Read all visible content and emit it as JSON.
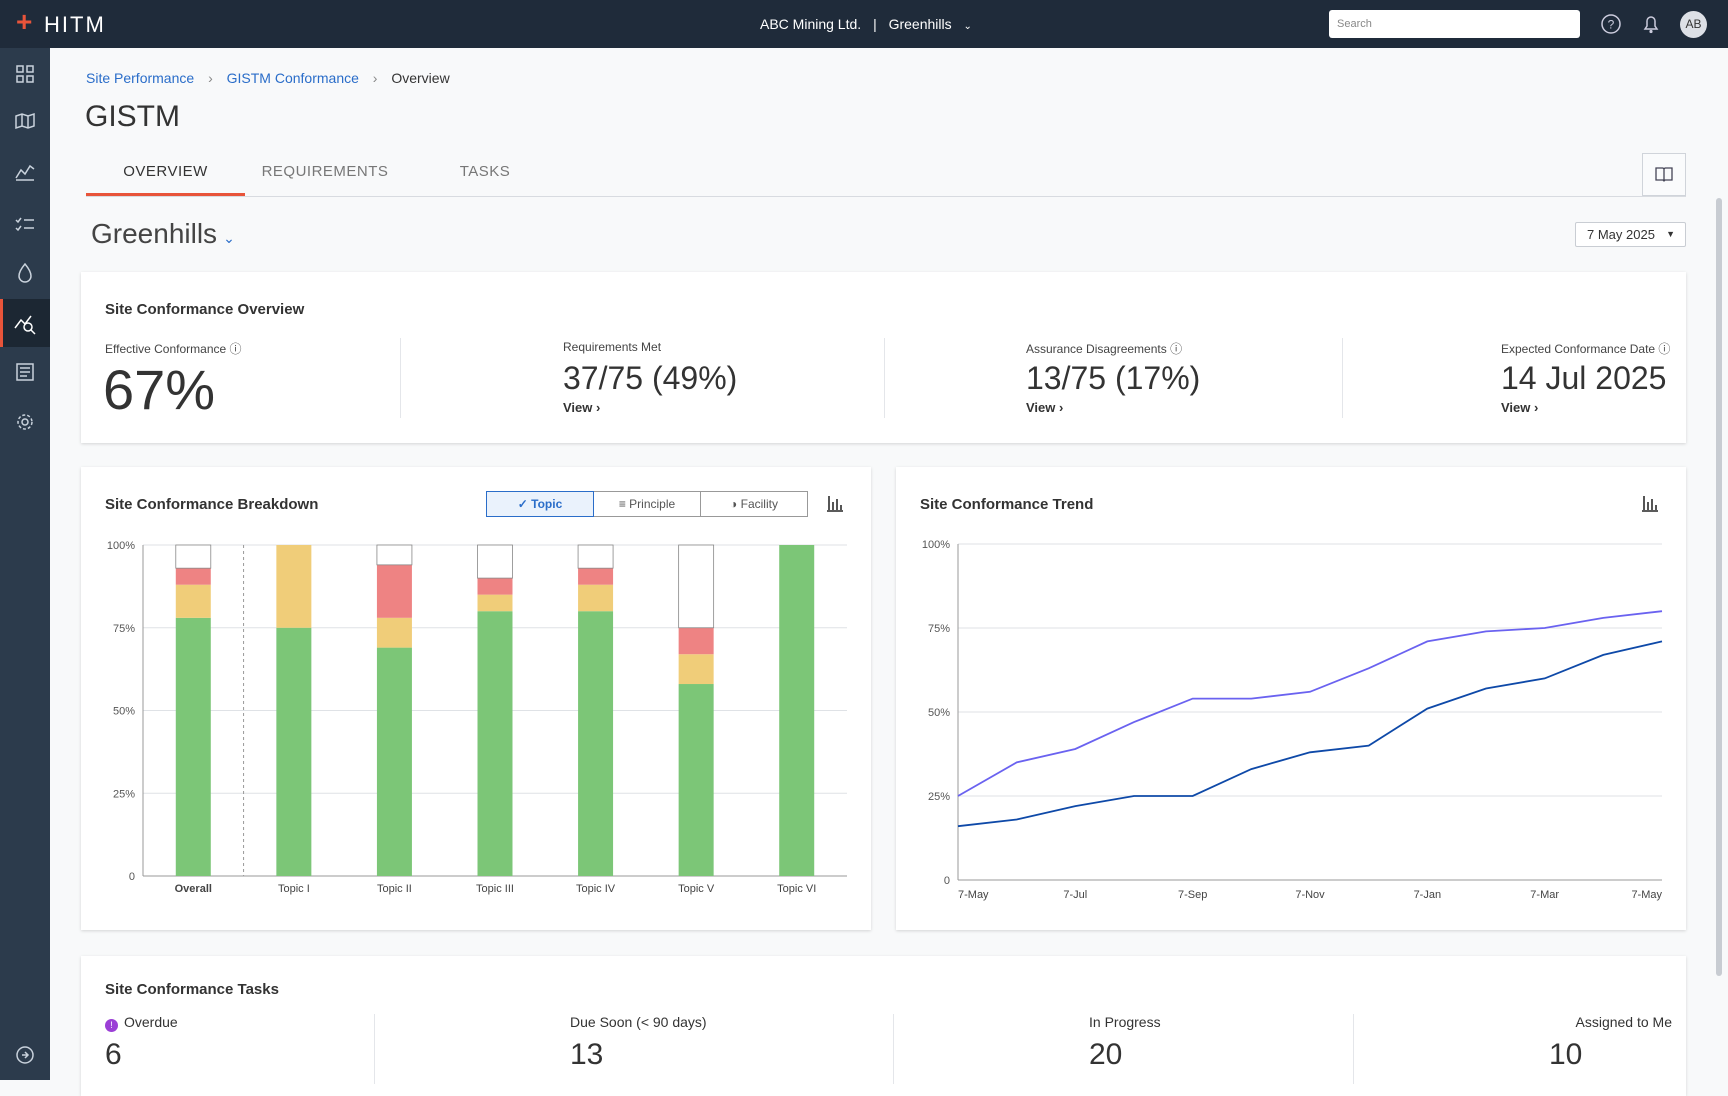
{
  "header": {
    "brand": "HITM",
    "organization": "ABC Mining Ltd.",
    "separator": "|",
    "site": "Greenhills",
    "search_placeholder": "Search",
    "avatar": "AB"
  },
  "breadcrumb": [
    "Site Performance",
    "GISTM Conformance",
    "Overview"
  ],
  "title": "GISTM",
  "tabs": [
    "OVERVIEW",
    "REQUIREMENTS",
    "TASKS"
  ],
  "site_selector": "Greenhills",
  "date_selector": "7 May 2025",
  "overview": {
    "title": "Site Conformance Overview",
    "metrics": [
      {
        "label": "Effective Conformance",
        "value": "67%"
      },
      {
        "label": "Requirements Met",
        "value": "37/75 (49%)",
        "link": "View"
      },
      {
        "label": "Assurance Disagreements",
        "value": "13/75 (17%)",
        "link": "View"
      },
      {
        "label": "Expected Conformance Date",
        "value": "14 Jul 2025",
        "link": "View"
      }
    ]
  },
  "breakdown_toggles": [
    "Topic",
    "Principle",
    "Facility"
  ],
  "chart_data": [
    {
      "type": "bar",
      "stacked": true,
      "title": "Site Conformance Breakdown",
      "categories": [
        "Overall",
        "Topic I",
        "Topic II",
        "Topic III",
        "Topic IV",
        "Topic V",
        "Topic VI"
      ],
      "series": [
        {
          "color": "#7cc677",
          "values": [
            78,
            75,
            69,
            80,
            80,
            58,
            100
          ]
        },
        {
          "color": "#f0cd79",
          "values": [
            10,
            25,
            9,
            5,
            8,
            9,
            0
          ]
        },
        {
          "color": "#ee8383",
          "values": [
            5,
            0,
            16,
            5,
            5,
            8,
            0
          ]
        },
        {
          "color": "#ffffff",
          "values": [
            7,
            0,
            6,
            10,
            7,
            25,
            0
          ]
        }
      ],
      "ylim": [
        0,
        100
      ],
      "yticks": [
        0,
        {
          "value": 25,
          "label": "25%"
        },
        {
          "value": 50,
          "label": "50%"
        },
        {
          "value": 75,
          "label": "75%"
        },
        {
          "value": 100,
          "label": "100%"
        }
      ],
      "grid": true
    },
    {
      "type": "line",
      "title": "Site Conformance Trend",
      "categories": [
        "7-May",
        null,
        "7-Jul",
        null,
        "7-Sep",
        null,
        "7-Nov",
        null,
        "7-Jan",
        null,
        "7-Mar",
        null,
        "7-May"
      ],
      "series": [
        {
          "color": "#6a62f0",
          "values": [
            25,
            35,
            39,
            47,
            54,
            54,
            56,
            63,
            71,
            74,
            75,
            78,
            80
          ]
        },
        {
          "color": "#0e49a8",
          "values": [
            16,
            18,
            22,
            25,
            25,
            33,
            38,
            40,
            51,
            57,
            60,
            67,
            71
          ]
        }
      ],
      "ylim": [
        0,
        100
      ],
      "yticks": [
        0,
        {
          "value": 25,
          "label": "25%"
        },
        {
          "value": 50,
          "label": "50%"
        },
        {
          "value": 75,
          "label": "75%"
        },
        {
          "value": 100,
          "label": "100%"
        }
      ],
      "grid": true
    }
  ],
  "tasks": {
    "title": "Site Conformance Tasks",
    "items": [
      {
        "label": "Overdue",
        "value": 6
      },
      {
        "label": "Due Soon (< 90 days)",
        "value": 13
      },
      {
        "label": "In Progress",
        "value": 20
      },
      {
        "label": "Assigned to Me",
        "value": 10
      }
    ]
  }
}
